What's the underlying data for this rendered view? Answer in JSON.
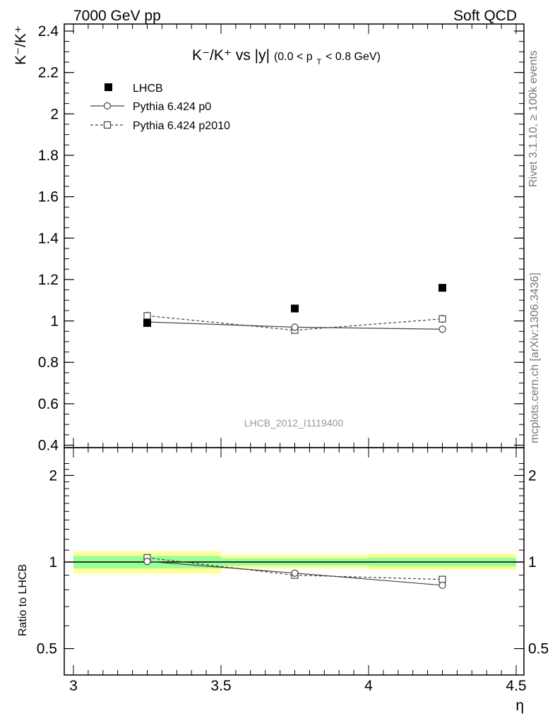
{
  "header": {
    "left": "7000 GeV pp",
    "right": "Soft QCD"
  },
  "side_labels": {
    "rivet": "Rivet 3.1.10, ≥ 100k events",
    "mcplots": "mcplots.cern.ch [arXiv:1306.3436]"
  },
  "chart_data": [
    {
      "type": "scatter",
      "title": {
        "main": "K⁻/K⁺ vs |y|",
        "cut_open": "(0.0 < p",
        "cut_sub": "T",
        "cut_close": " < 0.8 GeV)"
      },
      "ylabel": "K⁻/K⁺",
      "ylim": [
        0.4,
        2.45
      ],
      "yticks": [
        "0.4",
        "0.6",
        "0.8",
        "1",
        "1.2",
        "1.4",
        "1.6",
        "1.8",
        "2",
        "2.2",
        "2.4"
      ],
      "xlim": [
        3.0,
        4.5
      ],
      "watermark": "LHCB_2012_I1119400",
      "legend_position": "top-left",
      "series": [
        {
          "name": "LHCB",
          "marker": "filled-square",
          "color": "#000000",
          "x": [
            3.25,
            3.75,
            4.25
          ],
          "y": [
            0.99,
            1.06,
            1.16
          ],
          "yerr": [
            0.01,
            0.01,
            0.01
          ]
        },
        {
          "name": "Pythia 6.424 p0",
          "marker": "open-circle",
          "line": "solid",
          "color": "#444444",
          "x": [
            3.25,
            3.75,
            4.25
          ],
          "y": [
            0.995,
            0.97,
            0.96
          ],
          "yerr": [
            0.01,
            0.015,
            0.015
          ]
        },
        {
          "name": "Pythia 6.424 p2010",
          "marker": "open-square",
          "line": "dashed",
          "color": "#444444",
          "x": [
            3.25,
            3.75,
            4.25
          ],
          "y": [
            1.025,
            0.955,
            1.01
          ],
          "yerr": [
            0.02,
            0.015,
            0.02
          ]
        }
      ]
    },
    {
      "type": "scatter",
      "ylabel": "Ratio to LHCB",
      "xlabel": "η",
      "ylim": [
        0.4,
        2.3
      ],
      "yticks": [
        "0.5",
        "1",
        "2"
      ],
      "xlim": [
        3.0,
        4.5
      ],
      "xticks": [
        "3",
        "3.5",
        "4",
        "4.5"
      ],
      "bands": [
        {
          "xmin": 3.0,
          "xmax": 3.5,
          "inner": [
            0.95,
            1.05
          ],
          "outer": [
            0.91,
            1.09
          ]
        },
        {
          "xmin": 3.5,
          "xmax": 4.0,
          "inner": [
            0.97,
            1.03
          ],
          "outer": [
            0.95,
            1.06
          ]
        },
        {
          "xmin": 4.0,
          "xmax": 4.5,
          "inner": [
            0.965,
            1.035
          ],
          "outer": [
            0.94,
            1.07
          ]
        }
      ],
      "band_colors": {
        "inner": "#99ff99",
        "outer": "#ffff99"
      },
      "series": [
        {
          "name": "Pythia 6.424 p0",
          "marker": "open-circle",
          "line": "solid",
          "color": "#444444",
          "x": [
            3.25,
            3.75,
            4.25
          ],
          "y": [
            1.005,
            0.915,
            0.83
          ]
        },
        {
          "name": "Pythia 6.424 p2010",
          "marker": "open-square",
          "line": "dashed",
          "color": "#444444",
          "x": [
            3.25,
            3.75,
            4.25
          ],
          "y": [
            1.035,
            0.9,
            0.87
          ]
        }
      ]
    }
  ]
}
